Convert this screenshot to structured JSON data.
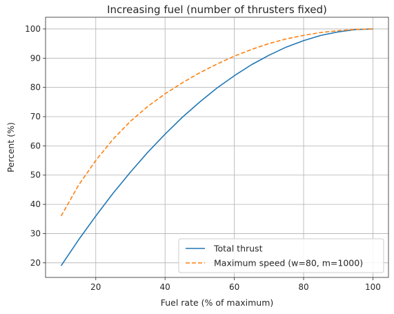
{
  "chart_data": {
    "type": "line",
    "title": "Increasing fuel (number of thrusters fixed)",
    "xlabel": "Fuel rate (% of maximum)",
    "ylabel": "Percent (%)",
    "xlim": [
      5.5,
      104.5
    ],
    "ylim": [
      15,
      104
    ],
    "xticks": [
      20,
      40,
      60,
      80,
      100
    ],
    "yticks": [
      20,
      30,
      40,
      50,
      60,
      70,
      80,
      90,
      100
    ],
    "grid": true,
    "legend_position": "lower-right",
    "series": [
      {
        "name": "Total thrust",
        "color": "#1f77b4",
        "dash": "solid",
        "x": [
          10,
          15,
          20,
          25,
          30,
          35,
          40,
          45,
          50,
          55,
          60,
          65,
          70,
          75,
          80,
          85,
          90,
          95,
          100
        ],
        "y": [
          19,
          27.8,
          36.0,
          43.8,
          51.0,
          57.8,
          64.0,
          69.8,
          75.0,
          79.8,
          84.0,
          87.8,
          91.0,
          93.8,
          96.0,
          97.8,
          99.0,
          99.8,
          100
        ]
      },
      {
        "name": "Maximum speed (w=80, m=1000)",
        "color": "#ff7f0e",
        "dash": "dashed",
        "x": [
          10,
          15,
          20,
          25,
          30,
          35,
          40,
          45,
          50,
          55,
          60,
          65,
          70,
          75,
          80,
          85,
          90,
          95,
          100
        ],
        "y": [
          36,
          46.5,
          55.0,
          62.3,
          68.4,
          73.5,
          77.8,
          81.6,
          85.0,
          88.0,
          90.7,
          93.0,
          95.0,
          96.6,
          97.8,
          98.8,
          99.4,
          99.85,
          100
        ]
      }
    ]
  }
}
